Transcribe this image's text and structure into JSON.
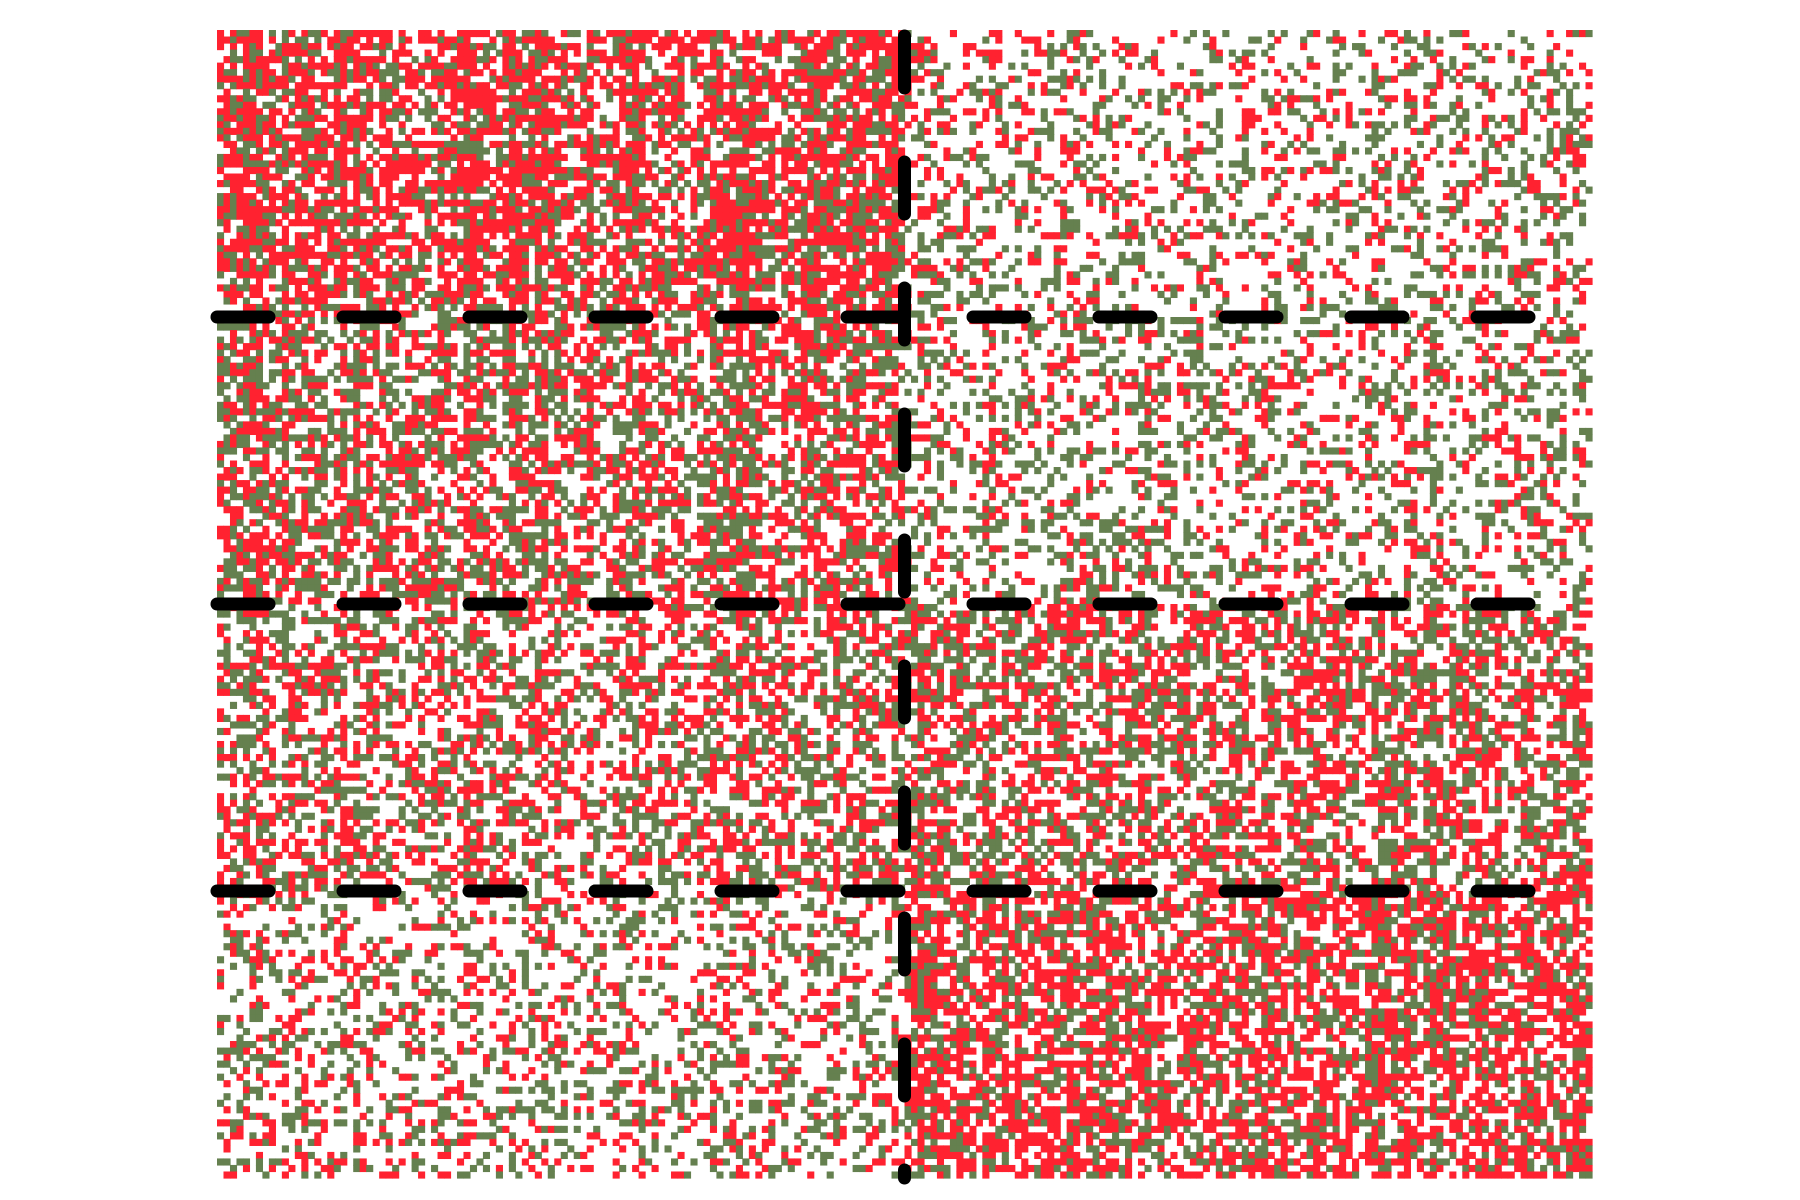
{
  "chart_data": {
    "type": "heatmap",
    "title": "",
    "xlabel": "",
    "ylabel": "",
    "grid": false,
    "colors": {
      "background": "#ffffff",
      "high": "#ff2230",
      "low": "#65804f",
      "divider": "#000000"
    },
    "matrix": {
      "rows": 176,
      "cols": 212,
      "fill_fraction": 0.55,
      "blocks": {
        "row_split_fractions": [
          0.25,
          0.5,
          0.75
        ],
        "col_split_fractions": [
          0.5
        ],
        "density": [
          [
            0.72,
            0.34
          ],
          [
            0.62,
            0.38
          ],
          [
            0.52,
            0.6
          ],
          [
            0.36,
            0.7
          ]
        ],
        "red_share": [
          [
            0.65,
            0.45
          ],
          [
            0.52,
            0.4
          ],
          [
            0.5,
            0.52
          ],
          [
            0.45,
            0.65
          ]
        ]
      }
    },
    "divider_style": "dashed"
  }
}
